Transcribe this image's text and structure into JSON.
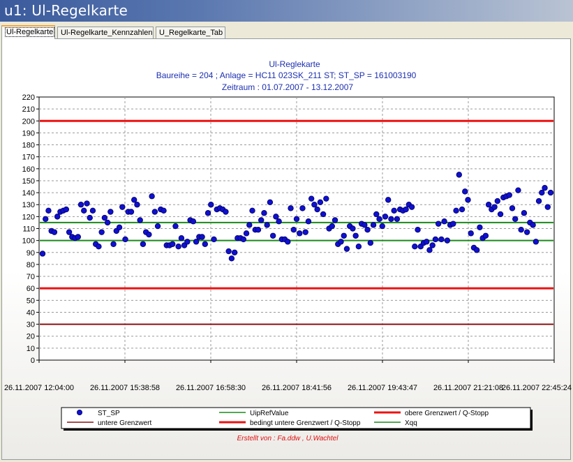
{
  "window": {
    "title": "u1: Ul-Regelkarte"
  },
  "tabs": [
    {
      "label": "Ul-Regelkarte",
      "active": true
    },
    {
      "label": "Ul-Regelkarte_Kennzahlen",
      "active": false
    },
    {
      "label": "U_Regelkarte_Tab",
      "active": false
    }
  ],
  "chart_data": {
    "type": "scatter",
    "title": "Ul-Reglekarte",
    "subtitle": "Baureihe = 204 ; Anlage = HC11 023SK_211 ST; ST_SP = 161003190",
    "subtitle2": "Zeitraum : 01.07.2007 - 13.12.2007",
    "ylim": [
      0,
      220
    ],
    "yticks": [
      0,
      10,
      20,
      30,
      40,
      50,
      60,
      70,
      80,
      90,
      100,
      110,
      120,
      130,
      140,
      150,
      160,
      170,
      180,
      190,
      200,
      210,
      220
    ],
    "xlim": [
      "26.11.2007 12:04:00",
      "26.11.2007 22:45:24"
    ],
    "xticks": [
      "26.11.2007 12:04:00",
      "26.11.2007 15:38:58",
      "26.11.2007 16:58:30",
      "26.11.2007 18:41:56",
      "26.11.2007 19:43:47",
      "26.11.2007 21:21:08",
      "26.11.2007 22:45:24"
    ],
    "grid": true,
    "legend_position": "bottom",
    "series": [
      {
        "name": "ST_SP",
        "kind": "markers",
        "color": "#1010d0",
        "values": [
          89,
          118,
          125,
          108,
          107,
          120,
          124,
          125,
          126,
          107,
          103,
          102,
          103,
          130,
          125,
          131,
          119,
          125,
          97,
          95,
          107,
          119,
          115,
          124,
          97,
          108,
          111,
          128,
          101,
          124,
          124,
          134,
          130,
          117,
          97,
          107,
          105,
          137,
          124,
          112,
          126,
          125,
          96,
          96,
          97,
          112,
          95,
          102,
          96,
          99,
          117,
          116,
          99,
          103,
          103,
          97,
          123,
          130,
          101,
          126,
          127,
          126,
          124,
          91,
          85,
          90,
          102,
          102,
          101,
          106,
          113,
          125,
          109,
          109,
          117,
          123,
          113,
          132,
          104,
          120,
          116,
          101,
          101,
          99,
          127,
          109,
          118,
          106,
          127,
          107,
          116,
          135,
          130,
          126,
          132,
          122,
          135,
          110,
          112,
          117,
          97,
          99,
          104,
          93,
          112,
          110,
          104,
          95,
          114,
          113,
          109,
          98,
          113,
          122,
          118,
          112,
          120,
          134,
          118,
          125,
          118,
          126,
          125,
          126,
          130,
          128,
          95,
          109,
          95,
          98,
          99,
          92,
          96,
          101,
          114,
          101,
          116,
          100,
          113,
          114,
          125,
          155,
          126,
          141,
          134,
          106,
          94,
          92,
          111,
          102,
          104,
          130,
          126,
          128,
          133,
          122,
          136,
          137,
          138,
          127,
          118,
          142,
          109,
          123,
          107,
          115,
          113,
          99,
          133,
          140,
          144,
          128,
          140
        ]
      },
      {
        "name": "UipRefValue",
        "kind": "hline",
        "color": "#1a8a1a",
        "value": 100
      },
      {
        "name": "obere Grenzwert / Q-Stopp",
        "kind": "hline",
        "color": "#ee1111",
        "value": 200
      },
      {
        "name": "untere Grenzwert",
        "kind": "hline",
        "color": "#8b1111",
        "value": 30
      },
      {
        "name": "bedingt untere Grenzwert / Q-Stopp",
        "kind": "hline",
        "color": "#ee1111",
        "value": 60
      },
      {
        "name": "Xqq",
        "kind": "hline",
        "color": "#1a8a1a",
        "value": 115
      }
    ],
    "footer": "Erstellt von : Fa.ddw , U.Wachtel"
  }
}
